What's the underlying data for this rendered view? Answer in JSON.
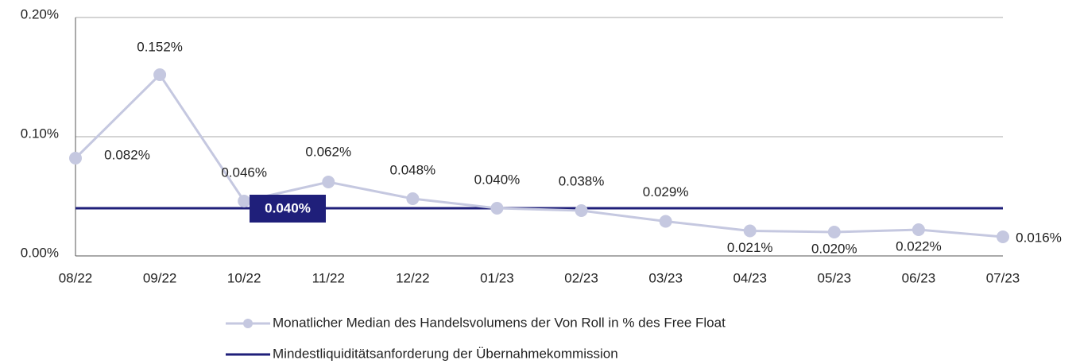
{
  "chart_data": {
    "type": "line",
    "categories": [
      "08/22",
      "09/22",
      "10/22",
      "11/22",
      "12/22",
      "01/23",
      "02/23",
      "03/23",
      "04/23",
      "05/23",
      "06/23",
      "07/23"
    ],
    "series": [
      {
        "name": "Monatlicher Median des Handelsvolumens der Von Roll in % des Free Float",
        "color": "#c5c8e0",
        "values": [
          0.082,
          0.152,
          0.046,
          0.062,
          0.048,
          0.04,
          0.038,
          0.029,
          0.021,
          0.02,
          0.022,
          0.016
        ],
        "value_labels": [
          "0.082%",
          "0.152%",
          "0.046%",
          "0.062%",
          "0.048%",
          "0.040%",
          "0.038%",
          "0.029%",
          "0.021%",
          "0.020%",
          "0.022%",
          "0.016%"
        ]
      },
      {
        "name": "Mindestliquiditätsanforderung der Übernahmekommission",
        "color": "#1f1f7a",
        "value": 0.04,
        "value_label": "0.040%"
      }
    ],
    "ylim": [
      0,
      0.2
    ],
    "yticks": [
      {
        "value": 0,
        "label": "0.00%"
      },
      {
        "value": 0.1,
        "label": "0.10%"
      },
      {
        "value": 0.2,
        "label": "0.20%"
      }
    ],
    "grid": true
  }
}
